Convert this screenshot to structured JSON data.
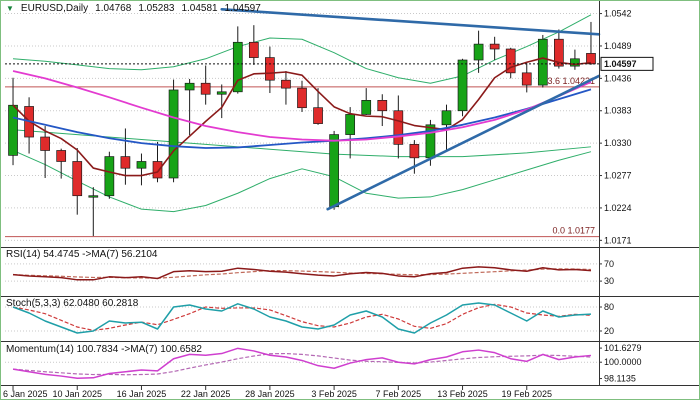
{
  "header": {
    "symbol": "EURUSD,Daily",
    "open": "1.04768",
    "high": "1.05283",
    "low": "1.04581",
    "close": "1.04597"
  },
  "icons": {
    "dropdown": "▼"
  },
  "colors": {
    "bull": "#17a317",
    "bear": "#df2b2b",
    "wick": "#1b1b1b",
    "body_stroke": "#1b1b1b",
    "magenta_ma": "#e33bd0",
    "blue_ma": "#2457c5",
    "fast_ma": "#8b1a1a",
    "band": "#2fae6a",
    "trendline": "#2f6aa8",
    "price_line": "#111111",
    "fib": "#c05555",
    "fib_text": "#7a1f1f",
    "rsi": "#8b1a1a",
    "rsi_signal": "#c06a5a",
    "stoch": "#1f9fa8",
    "stoch_signal": "#cf3b3b",
    "momentum": "#cf3fcf",
    "momentum_signal": "#b469b4",
    "grid": "#c9c9c9",
    "separator": "#333333",
    "axis_text": "#111111"
  },
  "chart_data": {
    "type": "candlestick",
    "title": "EURUSD,Daily",
    "symbol": "EURUSD",
    "timeframe": "Daily",
    "current_bar": {
      "open": 1.04768,
      "high": 1.05283,
      "low": 1.04581,
      "close": 1.04597
    },
    "y_axis": {
      "range": [
        1.0165,
        1.0556
      ],
      "ticks": [
        {
          "v": 1.0542,
          "label": "1.0542"
        },
        {
          "v": 1.0489,
          "label": "1.0489"
        },
        {
          "v": 1.0436,
          "label": "1.0436"
        },
        {
          "v": 1.0383,
          "label": "1.0383"
        },
        {
          "v": 1.033,
          "label": "1.0330"
        },
        {
          "v": 1.0277,
          "label": "1.0277"
        },
        {
          "v": 1.0224,
          "label": "1.0224"
        },
        {
          "v": 1.0171,
          "label": "1.0171"
        }
      ]
    },
    "price_line": {
      "value": 1.04597,
      "label": "1.04597"
    },
    "fibonacci": [
      {
        "level": "23.6",
        "value": 1.04221,
        "label": "23.6   1.04221"
      },
      {
        "level": "0.0",
        "value": 1.0177,
        "label": "0.0   1.0177"
      }
    ],
    "dates": [
      "6 Jan",
      "7 Jan",
      "8 Jan",
      "9 Jan",
      "10 Jan",
      "13 Jan",
      "14 Jan",
      "15 Jan",
      "16 Jan",
      "17 Jan",
      "20 Jan",
      "21 Jan",
      "22 Jan",
      "23 Jan",
      "24 Jan",
      "27 Jan",
      "28 Jan",
      "29 Jan",
      "30 Jan",
      "31 Jan",
      "3 Feb",
      "4 Feb",
      "5 Feb",
      "6 Feb",
      "7 Feb",
      "10 Feb",
      "11 Feb",
      "12 Feb",
      "13 Feb",
      "14 Feb",
      "17 Feb",
      "18 Feb",
      "19 Feb",
      "20 Feb",
      "21 Feb",
      "24 Feb",
      "25 Feb"
    ],
    "x_labels": [
      {
        "idx": 0,
        "label": "6 Jan 2025"
      },
      {
        "idx": 4,
        "label": "10 Jan 2025"
      },
      {
        "idx": 8,
        "label": "16 Jan 2025"
      },
      {
        "idx": 12,
        "label": "22 Jan 2025"
      },
      {
        "idx": 16,
        "label": "28 Jan 2025"
      },
      {
        "idx": 20,
        "label": "3 Feb 2025"
      },
      {
        "idx": 24,
        "label": "7 Feb 2025"
      },
      {
        "idx": 28,
        "label": "13 Feb 2025"
      },
      {
        "idx": 32,
        "label": "19 Feb 2025"
      }
    ],
    "candles": [
      [
        1.031,
        1.0437,
        1.0294,
        1.0392
      ],
      [
        1.039,
        1.0405,
        1.0313,
        1.034
      ],
      [
        1.034,
        1.0358,
        1.0273,
        1.0318
      ],
      [
        1.0318,
        1.0321,
        1.0272,
        1.03
      ],
      [
        1.03,
        1.0322,
        1.0213,
        1.0244
      ],
      [
        1.0244,
        1.0258,
        1.0178,
        1.0244
      ],
      [
        1.0244,
        1.0316,
        1.0239,
        1.0308
      ],
      [
        1.0308,
        1.0354,
        1.0262,
        1.0289
      ],
      [
        1.0289,
        1.0313,
        1.0261,
        1.03
      ],
      [
        1.03,
        1.0332,
        1.0266,
        1.0273
      ],
      [
        1.0273,
        1.0434,
        1.0266,
        1.0417
      ],
      [
        1.0417,
        1.0435,
        1.0343,
        1.0428
      ],
      [
        1.0428,
        1.0457,
        1.0393,
        1.041
      ],
      [
        1.041,
        1.0426,
        1.0371,
        1.0414
      ],
      [
        1.0414,
        1.0521,
        1.0411,
        1.0495
      ],
      [
        1.0495,
        1.0523,
        1.0458,
        1.047
      ],
      [
        1.047,
        1.0488,
        1.0412,
        1.0433
      ],
      [
        1.0433,
        1.0448,
        1.0393,
        1.042
      ],
      [
        1.042,
        1.0432,
        1.0381,
        1.0388
      ],
      [
        1.0388,
        1.042,
        1.036,
        1.0362
      ],
      [
        1.0226,
        1.035,
        1.0221,
        1.0344
      ],
      [
        1.0344,
        1.0389,
        1.0305,
        1.0377
      ],
      [
        1.0377,
        1.042,
        1.0376,
        1.04
      ],
      [
        1.04,
        1.041,
        1.0358,
        1.0383
      ],
      [
        1.0383,
        1.0408,
        1.0305,
        1.0328
      ],
      [
        1.0328,
        1.0335,
        1.028,
        1.0306
      ],
      [
        1.0306,
        1.0368,
        1.0293,
        1.036
      ],
      [
        1.036,
        1.0393,
        1.0317,
        1.0383
      ],
      [
        1.0383,
        1.0468,
        1.0374,
        1.0466
      ],
      [
        1.0466,
        1.0514,
        1.0445,
        1.0492
      ],
      [
        1.0492,
        1.0504,
        1.0466,
        1.0484
      ],
      [
        1.0484,
        1.0486,
        1.0436,
        1.0445
      ],
      [
        1.0445,
        1.0461,
        1.0413,
        1.0425
      ],
      [
        1.0425,
        1.0507,
        1.0421,
        1.05
      ],
      [
        1.05,
        1.0516,
        1.0452,
        1.0456
      ],
      [
        1.0456,
        1.0483,
        1.045,
        1.0468
      ],
      [
        1.04768,
        1.05283,
        1.04581,
        1.04597
      ]
    ],
    "overlays": {
      "fast_ma_period": 5,
      "magenta_ma": [
        [
          0,
          1.0448
        ],
        [
          2,
          1.0436
        ],
        [
          4,
          1.0421
        ],
        [
          6,
          1.0405
        ],
        [
          8,
          1.0388
        ],
        [
          10,
          1.0372
        ],
        [
          12,
          1.0358
        ],
        [
          14,
          1.0348
        ],
        [
          16,
          1.034
        ],
        [
          18,
          1.0336
        ],
        [
          20,
          1.0334
        ],
        [
          22,
          1.0336
        ],
        [
          24,
          1.0341
        ],
        [
          26,
          1.0347
        ],
        [
          28,
          1.0356
        ],
        [
          30,
          1.0368
        ],
        [
          32,
          1.0385
        ],
        [
          34,
          1.0407
        ],
        [
          36,
          1.043
        ]
      ],
      "blue_ma": [
        [
          0,
          1.0372
        ],
        [
          2,
          1.036
        ],
        [
          4,
          1.0348
        ],
        [
          6,
          1.0338
        ],
        [
          8,
          1.033
        ],
        [
          10,
          1.0325
        ],
        [
          12,
          1.0322
        ],
        [
          14,
          1.0323
        ],
        [
          16,
          1.0327
        ],
        [
          18,
          1.0331
        ],
        [
          20,
          1.0334
        ],
        [
          22,
          1.0338
        ],
        [
          24,
          1.0343
        ],
        [
          26,
          1.035
        ],
        [
          28,
          1.036
        ],
        [
          30,
          1.0372
        ],
        [
          32,
          1.0386
        ],
        [
          34,
          1.0402
        ],
        [
          36,
          1.0418
        ]
      ],
      "band_upper": [
        [
          0,
          1.0468
        ],
        [
          2,
          1.0464
        ],
        [
          4,
          1.0458
        ],
        [
          6,
          1.0452
        ],
        [
          8,
          1.045
        ],
        [
          10,
          1.0455
        ],
        [
          12,
          1.0468
        ],
        [
          14,
          1.0488
        ],
        [
          16,
          1.0502
        ],
        [
          18,
          1.05
        ],
        [
          20,
          1.0478
        ],
        [
          22,
          1.0452
        ],
        [
          24,
          1.0437
        ],
        [
          26,
          1.0428
        ],
        [
          28,
          1.044
        ],
        [
          30,
          1.0466
        ],
        [
          32,
          1.0488
        ],
        [
          34,
          1.0512
        ],
        [
          36,
          1.054
        ]
      ],
      "band_lower": [
        [
          0,
          1.0318
        ],
        [
          2,
          1.0295
        ],
        [
          4,
          1.0268
        ],
        [
          6,
          1.0242
        ],
        [
          8,
          1.0222
        ],
        [
          10,
          1.0218
        ],
        [
          12,
          1.0228
        ],
        [
          14,
          1.0248
        ],
        [
          16,
          1.0272
        ],
        [
          18,
          1.0288
        ],
        [
          20,
          1.0275
        ],
        [
          22,
          1.0248
        ],
        [
          24,
          1.024
        ],
        [
          26,
          1.0242
        ],
        [
          28,
          1.0254
        ],
        [
          30,
          1.027
        ],
        [
          32,
          1.0286
        ],
        [
          34,
          1.0302
        ],
        [
          36,
          1.0316
        ]
      ],
      "green_slow_ma": [
        [
          0,
          1.0352
        ],
        [
          4,
          1.0344
        ],
        [
          8,
          1.0336
        ],
        [
          12,
          1.0328
        ],
        [
          16,
          1.032
        ],
        [
          20,
          1.0312
        ],
        [
          24,
          1.0308
        ],
        [
          28,
          1.0308
        ],
        [
          32,
          1.0314
        ],
        [
          36,
          1.0324
        ]
      ],
      "trendlines": [
        {
          "name": "resistance",
          "from": [
            13,
            1.0549
          ],
          "to": [
            36.5,
            1.0508
          ]
        },
        {
          "name": "support",
          "from": [
            19.6,
            1.0222
          ],
          "to": [
            36.5,
            1.044
          ]
        }
      ]
    },
    "indicators": {
      "rsi": {
        "label": "RSI(14) 54.4745 ->MA(7) 56.2104",
        "value": 54.4745,
        "ma_value": 56.2104,
        "ma_period": 7,
        "range": [
          0,
          100
        ],
        "levels": [
          {
            "v": 70,
            "label": "70"
          },
          {
            "v": 30,
            "label": "30"
          }
        ],
        "values": [
          45,
          42,
          40,
          38,
          33,
          33,
          40,
          38,
          40,
          36,
          52,
          54,
          52,
          53,
          60,
          57,
          53,
          51,
          47,
          44,
          42,
          47,
          50,
          48,
          42,
          40,
          47,
          50,
          60,
          63,
          61,
          56,
          53,
          61,
          56,
          57,
          54.47
        ]
      },
      "stoch": {
        "label": "Stoch(5,3,3) 62.0480 60.2818",
        "value": 62.048,
        "signal_value": 60.2818,
        "signal_period": 3,
        "range": [
          0,
          100
        ],
        "levels": [
          {
            "v": 80,
            "label": "80"
          },
          {
            "v": 20,
            "label": "20"
          }
        ],
        "values": [
          80,
          65,
          45,
          30,
          15,
          20,
          45,
          40,
          42,
          25,
          80,
          85,
          75,
          70,
          88,
          75,
          55,
          45,
          30,
          25,
          35,
          60,
          70,
          55,
          25,
          15,
          40,
          60,
          85,
          90,
          85,
          65,
          45,
          70,
          55,
          60,
          62.05
        ]
      },
      "momentum": {
        "label": "Momentum(14) 100.7834 ->MA(7) 100.6582",
        "value": 100.7834,
        "ma_value": 100.6582,
        "ma_period": 7,
        "range": [
          97.6,
          102.1
        ],
        "levels": [
          {
            "v": 101.6279,
            "label": "101.6279",
            "line": false
          },
          {
            "v": 100.0,
            "label": "100.0000"
          },
          {
            "v": 98.1135,
            "label": "98.1135",
            "line": false
          }
        ],
        "values": [
          99.2,
          98.9,
          98.6,
          98.4,
          98.15,
          98.2,
          98.7,
          98.9,
          99.1,
          99.0,
          100.4,
          100.9,
          100.8,
          101.0,
          101.6,
          101.3,
          100.8,
          100.6,
          100.2,
          99.6,
          99.3,
          99.9,
          100.3,
          100.5,
          100.0,
          99.8,
          100.3,
          100.6,
          101.2,
          101.4,
          101.1,
          100.4,
          100.1,
          100.9,
          100.3,
          100.6,
          100.78
        ]
      }
    }
  }
}
